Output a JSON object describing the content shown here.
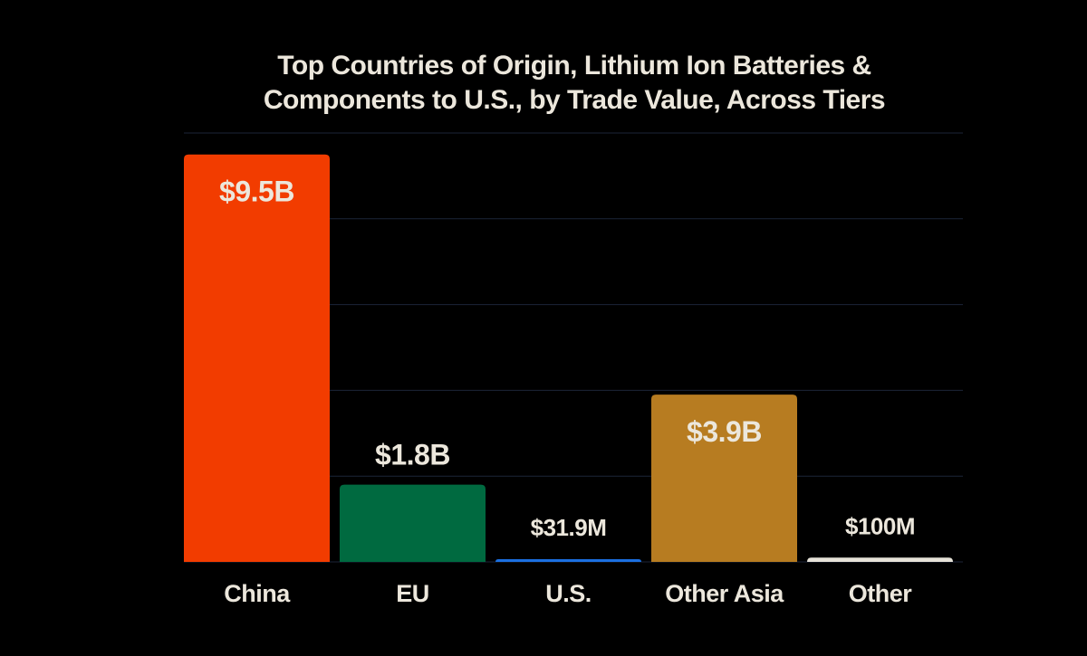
{
  "chart_data": {
    "type": "bar",
    "title_lines": [
      "Top Countries of Origin, Lithium Ion Batteries &",
      "Components to U.S., by Trade Value, Across Tiers"
    ],
    "categories": [
      "China",
      "EU",
      "U.S.",
      "Other Asia",
      "Other"
    ],
    "values": [
      9500,
      1800,
      31.9,
      3900,
      100
    ],
    "value_units": "millions USD",
    "data_labels": [
      "$9.5B",
      "$1.8B",
      "$31.9M",
      "$3.9B",
      "$100M"
    ],
    "colors": [
      "#f23c00",
      "#006a40",
      "#1b6fe0",
      "#b77c21",
      "#e6e2d8"
    ],
    "ylim": [
      0,
      10000
    ],
    "grid": true,
    "xlabel": "",
    "ylabel": ""
  },
  "colors": {
    "background": "#000000",
    "text": "#ece7dc",
    "grid": "#1c2538"
  }
}
